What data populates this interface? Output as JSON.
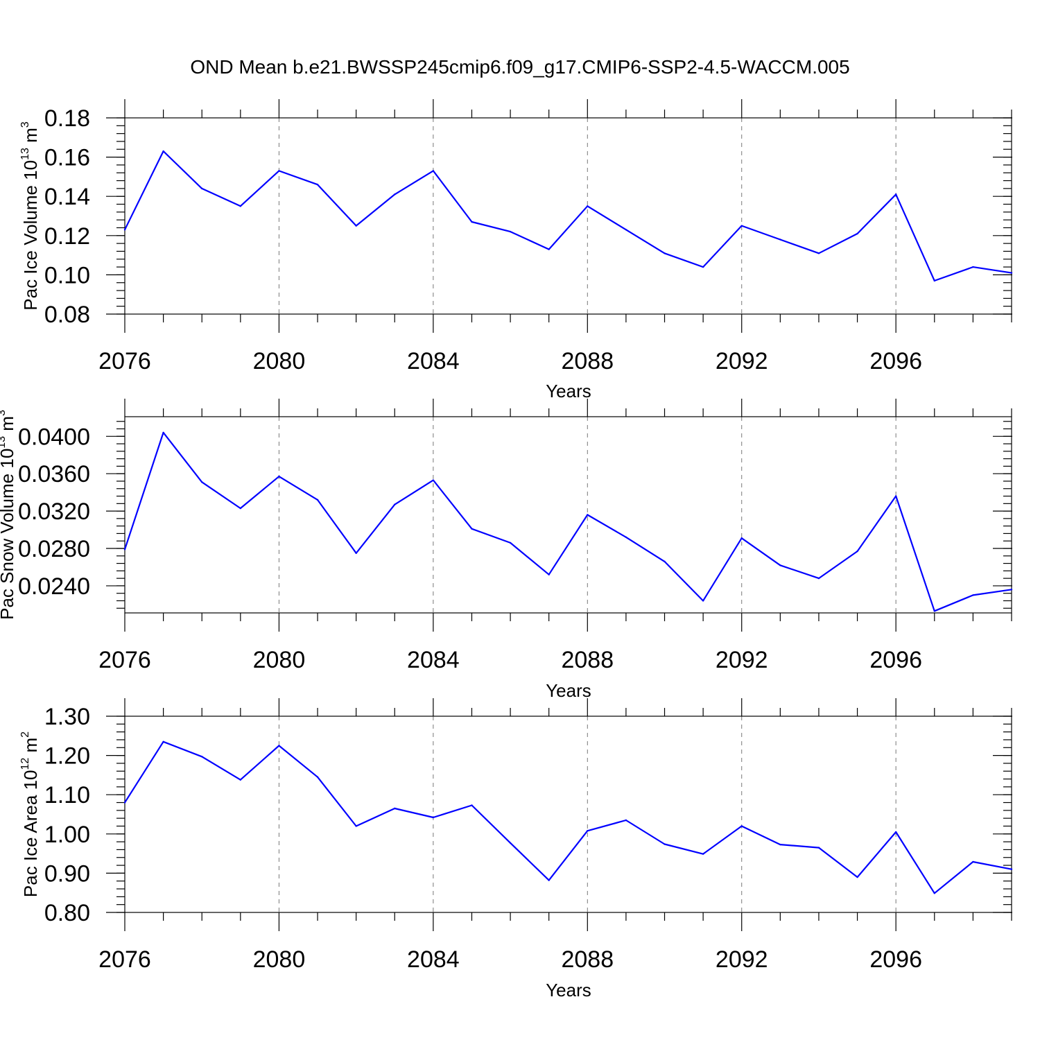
{
  "title": "OND Mean b.e21.BWSSP245cmip6.f09_g17.CMIP6-SSP2-4.5-WACCM.005",
  "chart_data": [
    {
      "type": "line",
      "xlabel": "Years",
      "ylabel": {
        "text": "Pac Ice Volume 10",
        "sup1": "13",
        "mid": " m",
        "sup2": "3"
      },
      "xlim": [
        2076,
        2099
      ],
      "ylim": [
        0.08,
        0.18
      ],
      "xticks": [
        2076,
        2080,
        2084,
        2088,
        2092,
        2096
      ],
      "yticks": [
        "0.08",
        "0.10",
        "0.12",
        "0.14",
        "0.16",
        "0.18"
      ],
      "grid_x": true,
      "line_color": "#0000ff",
      "x": [
        2076,
        2077,
        2078,
        2079,
        2080,
        2081,
        2082,
        2083,
        2084,
        2085,
        2086,
        2087,
        2088,
        2089,
        2090,
        2091,
        2092,
        2093,
        2094,
        2095,
        2096,
        2097,
        2098,
        2099
      ],
      "values": [
        0.123,
        0.163,
        0.144,
        0.135,
        0.153,
        0.146,
        0.125,
        0.141,
        0.153,
        0.127,
        0.122,
        0.113,
        0.135,
        0.123,
        0.111,
        0.104,
        0.125,
        0.118,
        0.111,
        0.121,
        0.141,
        0.097,
        0.104,
        0.101
      ]
    },
    {
      "type": "line",
      "xlabel": "Years",
      "ylabel": {
        "text": "Pac Snow Volume 10",
        "sup1": "13",
        "mid": " m",
        "sup2": "3"
      },
      "xlim": [
        2076,
        2099
      ],
      "ylim": [
        0.0211,
        0.0421
      ],
      "xticks": [
        2076,
        2080,
        2084,
        2088,
        2092,
        2096
      ],
      "yticks": [
        "0.0240",
        "0.0280",
        "0.0320",
        "0.0360",
        "0.0400"
      ],
      "grid_x": true,
      "line_color": "#0000ff",
      "x": [
        2076,
        2077,
        2078,
        2079,
        2080,
        2081,
        2082,
        2083,
        2084,
        2085,
        2086,
        2087,
        2088,
        2089,
        2090,
        2091,
        2092,
        2093,
        2094,
        2095,
        2096,
        2097,
        2098,
        2099
      ],
      "values": [
        0.0279,
        0.0404,
        0.0351,
        0.0323,
        0.0357,
        0.0332,
        0.0275,
        0.0327,
        0.0353,
        0.0301,
        0.0286,
        0.0252,
        0.0316,
        0.0292,
        0.0266,
        0.0224,
        0.0291,
        0.0262,
        0.0248,
        0.0277,
        0.0336,
        0.0213,
        0.023,
        0.0236
      ]
    },
    {
      "type": "line",
      "xlabel": "Years",
      "ylabel": {
        "text": "Pac Ice Area 10",
        "sup1": "12",
        "mid": " m",
        "sup2": "2"
      },
      "xlim": [
        2076,
        2099
      ],
      "ylim": [
        0.8,
        1.3
      ],
      "xticks": [
        2076,
        2080,
        2084,
        2088,
        2092,
        2096
      ],
      "yticks": [
        "0.80",
        "0.90",
        "1.00",
        "1.10",
        "1.20",
        "1.30"
      ],
      "grid_x": true,
      "line_color": "#0000ff",
      "x": [
        2076,
        2077,
        2078,
        2079,
        2080,
        2081,
        2082,
        2083,
        2084,
        2085,
        2086,
        2087,
        2088,
        2089,
        2090,
        2091,
        2092,
        2093,
        2094,
        2095,
        2096,
        2097,
        2098,
        2099
      ],
      "values": [
        1.08,
        1.235,
        1.197,
        1.138,
        1.225,
        1.145,
        1.02,
        1.065,
        1.042,
        1.073,
        0.977,
        0.882,
        1.008,
        1.035,
        0.974,
        0.949,
        1.02,
        0.973,
        0.965,
        0.89,
        1.005,
        0.849,
        0.929,
        0.91
      ]
    }
  ]
}
